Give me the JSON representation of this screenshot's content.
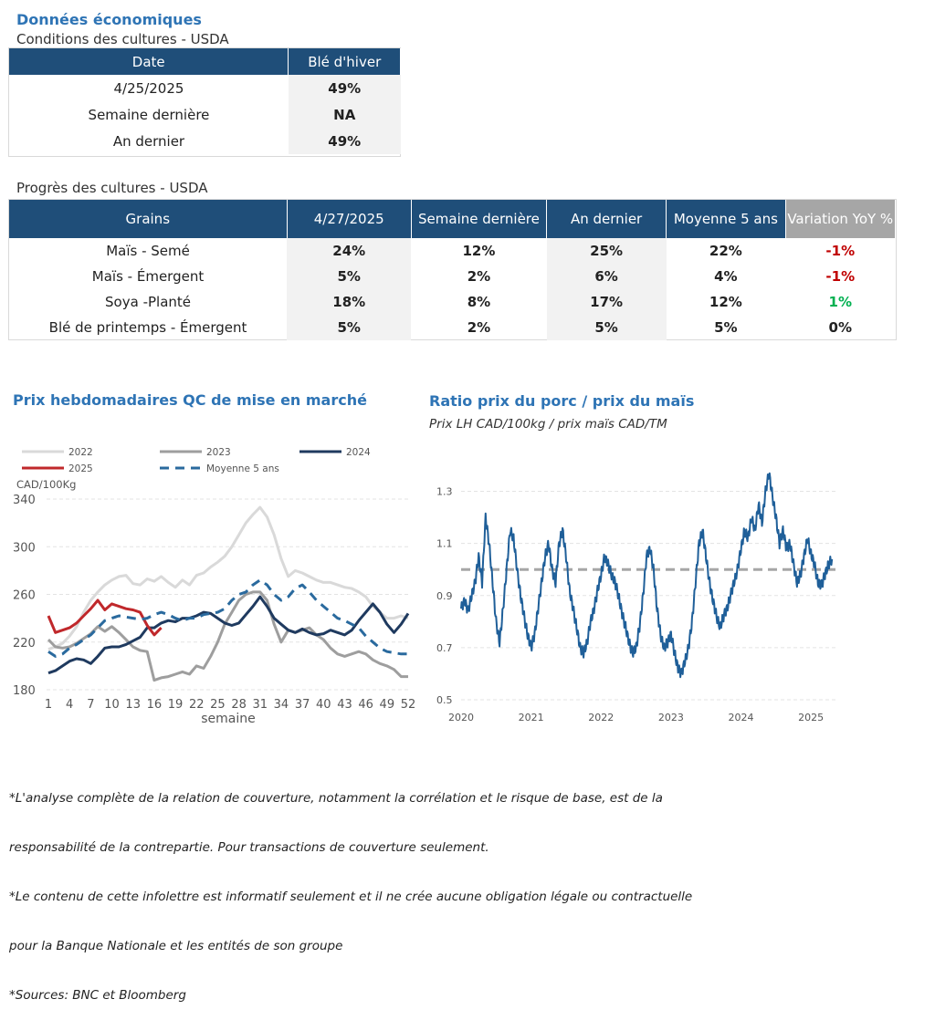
{
  "section1": {
    "heading": "Données économiques",
    "subtitle": "Conditions des cultures - USDA",
    "headers": [
      "Date",
      "Blé d'hiver"
    ],
    "rows": [
      {
        "label": "4/25/2025",
        "value": "49%"
      },
      {
        "label": "Semaine dernière",
        "value": "NA"
      },
      {
        "label": "An dernier",
        "value": "49%"
      }
    ]
  },
  "section2": {
    "subtitle": "Progrès des cultures - USDA",
    "headers": [
      "Grains",
      "4/27/2025",
      "Semaine dernière",
      "An dernier",
      "Moyenne 5 ans",
      "Variation YoY %"
    ],
    "rows": [
      {
        "label": "Maïs - Semé",
        "c1": "24%",
        "c2": "12%",
        "c3": "25%",
        "c4": "22%",
        "yoy": "-1%"
      },
      {
        "label": "Maïs - Émergent",
        "c1": "5%",
        "c2": "2%",
        "c3": "6%",
        "c4": "4%",
        "yoy": "-1%"
      },
      {
        "label": "Soya -Planté",
        "c1": "18%",
        "c2": "8%",
        "c3": "17%",
        "c4": "12%",
        "yoy": "1%"
      },
      {
        "label": "Blé de printemps - Émergent",
        "c1": "5%",
        "c2": "2%",
        "c3": "5%",
        "c4": "5%",
        "yoy": "0%"
      }
    ],
    "colors": {
      "negative": "#C00000",
      "positive": "#00B050"
    }
  },
  "chart_data": [
    {
      "type": "line",
      "title": "Prix hebdomadaires QC de mise en marché",
      "ylabel": "CAD/100Kg",
      "xlabel": "semaine",
      "ylim": [
        180,
        340
      ],
      "yticks": [
        180,
        220,
        260,
        300,
        340
      ],
      "xticks": [
        1,
        4,
        7,
        10,
        13,
        16,
        19,
        22,
        25,
        28,
        31,
        34,
        37,
        40,
        43,
        46,
        49,
        52
      ],
      "legend_position": "top",
      "series": [
        {
          "name": "2022",
          "color": "#D9D9D9",
          "dashed": false,
          "x": [
            1,
            2,
            3,
            4,
            5,
            6,
            7,
            8,
            9,
            10,
            11,
            12,
            13,
            14,
            15,
            16,
            17,
            18,
            19,
            20,
            21,
            22,
            23,
            24,
            25,
            26,
            27,
            28,
            29,
            30,
            31,
            32,
            33,
            34,
            35,
            36,
            37,
            38,
            39,
            40,
            41,
            42,
            43,
            44,
            45,
            46,
            47,
            48,
            49,
            50,
            51,
            52
          ],
          "values": [
            214,
            216,
            219,
            225,
            233,
            245,
            255,
            262,
            268,
            272,
            275,
            276,
            269,
            268,
            273,
            271,
            275,
            270,
            266,
            272,
            268,
            276,
            278,
            283,
            287,
            292,
            300,
            310,
            320,
            327,
            333,
            325,
            310,
            290,
            275,
            280,
            278,
            275,
            272,
            270,
            270,
            268,
            266,
            265,
            262,
            258,
            250,
            245,
            240,
            240,
            242,
            240
          ]
        },
        {
          "name": "2023",
          "color": "#9E9E9E",
          "dashed": false,
          "x": [
            1,
            2,
            3,
            4,
            5,
            6,
            7,
            8,
            9,
            10,
            11,
            12,
            13,
            14,
            15,
            16,
            17,
            18,
            19,
            20,
            21,
            22,
            23,
            24,
            25,
            26,
            27,
            28,
            29,
            30,
            31,
            32,
            33,
            34,
            35,
            36,
            37,
            38,
            39,
            40,
            41,
            42,
            43,
            44,
            45,
            46,
            47,
            48,
            49,
            50,
            51,
            52
          ],
          "values": [
            222,
            216,
            215,
            216,
            219,
            223,
            227,
            233,
            229,
            233,
            228,
            222,
            216,
            213,
            212,
            188,
            190,
            191,
            193,
            195,
            193,
            200,
            198,
            208,
            220,
            235,
            245,
            255,
            260,
            262,
            262,
            255,
            235,
            220,
            230,
            228,
            230,
            232,
            226,
            222,
            215,
            210,
            208,
            210,
            212,
            210,
            205,
            202,
            200,
            197,
            191,
            191
          ]
        },
        {
          "name": "2024",
          "color": "#1F3A5F",
          "dashed": false,
          "x": [
            1,
            2,
            3,
            4,
            5,
            6,
            7,
            8,
            9,
            10,
            11,
            12,
            13,
            14,
            15,
            16,
            17,
            18,
            19,
            20,
            21,
            22,
            23,
            24,
            25,
            26,
            27,
            28,
            29,
            30,
            31,
            32,
            33,
            34,
            35,
            36,
            37,
            38,
            39,
            40,
            41,
            42,
            43,
            44,
            45,
            46,
            47,
            48,
            49,
            50,
            51,
            52
          ],
          "values": [
            194,
            196,
            200,
            204,
            206,
            205,
            202,
            208,
            215,
            216,
            216,
            218,
            221,
            224,
            232,
            232,
            236,
            238,
            237,
            240,
            240,
            242,
            245,
            244,
            240,
            236,
            234,
            236,
            243,
            250,
            258,
            250,
            240,
            235,
            230,
            228,
            231,
            228,
            226,
            227,
            230,
            228,
            226,
            230,
            238,
            245,
            252,
            245,
            235,
            228,
            235,
            244
          ]
        },
        {
          "name": "2025",
          "color": "#C0282B",
          "dashed": false,
          "x": [
            1,
            2,
            3,
            4,
            5,
            6,
            7,
            8,
            9,
            10,
            11,
            12,
            13,
            14,
            15,
            16,
            17
          ],
          "values": [
            242,
            228,
            230,
            232,
            236,
            242,
            248,
            255,
            247,
            252,
            250,
            248,
            247,
            245,
            234,
            226,
            232
          ]
        },
        {
          "name": "Moyenne 5 ans",
          "color": "#2A6A9E",
          "dashed": true,
          "x": [
            1,
            2,
            3,
            4,
            5,
            6,
            7,
            8,
            9,
            10,
            11,
            12,
            13,
            14,
            15,
            16,
            17,
            18,
            19,
            20,
            21,
            22,
            23,
            24,
            25,
            26,
            27,
            28,
            29,
            30,
            31,
            32,
            33,
            34,
            35,
            36,
            37,
            38,
            39,
            40,
            41,
            42,
            43,
            44,
            45,
            46,
            47,
            48,
            49,
            50,
            51,
            52
          ],
          "values": [
            212,
            208,
            210,
            215,
            218,
            222,
            226,
            232,
            238,
            240,
            242,
            241,
            240,
            239,
            240,
            243,
            245,
            243,
            240,
            238,
            240,
            240,
            243,
            244,
            245,
            248,
            255,
            260,
            262,
            268,
            272,
            268,
            260,
            255,
            258,
            265,
            268,
            262,
            255,
            250,
            245,
            240,
            238,
            235,
            232,
            225,
            220,
            215,
            212,
            211,
            210,
            210
          ]
        }
      ]
    },
    {
      "type": "line",
      "title": "Ratio prix du porc / prix du maïs",
      "subtitle": "Prix LH CAD/100kg / prix maïs CAD/TM",
      "ylim": [
        0.5,
        1.4
      ],
      "yticks": [
        0.5,
        0.7,
        0.9,
        1.1,
        1.3
      ],
      "xticks": [
        "2020",
        "2021",
        "2022",
        "2023",
        "2024",
        "2025"
      ],
      "reference_line": 1.0,
      "series": [
        {
          "name": "Ratio",
          "color": "#1F5F99",
          "x": [
            2020.0,
            2020.05,
            2020.1,
            2020.15,
            2020.2,
            2020.25,
            2020.3,
            2020.35,
            2020.4,
            2020.45,
            2020.5,
            2020.55,
            2020.6,
            2020.65,
            2020.7,
            2020.75,
            2020.8,
            2020.85,
            2020.9,
            2020.95,
            2021.0,
            2021.05,
            2021.1,
            2021.15,
            2021.2,
            2021.25,
            2021.3,
            2021.35,
            2021.4,
            2021.45,
            2021.5,
            2021.55,
            2021.6,
            2021.65,
            2021.7,
            2021.75,
            2021.8,
            2021.85,
            2021.9,
            2021.95,
            2022.0,
            2022.05,
            2022.1,
            2022.15,
            2022.2,
            2022.25,
            2022.3,
            2022.35,
            2022.4,
            2022.45,
            2022.5,
            2022.55,
            2022.6,
            2022.65,
            2022.7,
            2022.75,
            2022.8,
            2022.85,
            2022.9,
            2022.95,
            2023.0,
            2023.05,
            2023.1,
            2023.15,
            2023.2,
            2023.25,
            2023.3,
            2023.35,
            2023.4,
            2023.45,
            2023.5,
            2023.55,
            2023.6,
            2023.65,
            2023.7,
            2023.75,
            2023.8,
            2023.85,
            2023.9,
            2023.95,
            2024.0,
            2024.05,
            2024.1,
            2024.15,
            2024.2,
            2024.25,
            2024.3,
            2024.35,
            2024.4,
            2024.45,
            2024.5,
            2024.55,
            2024.6,
            2024.65,
            2024.7,
            2024.75,
            2024.8,
            2024.85,
            2024.9,
            2024.95,
            2025.0,
            2025.05,
            2025.1,
            2025.15,
            2025.2,
            2025.25,
            2025.3
          ],
          "values": [
            0.85,
            0.88,
            0.84,
            0.9,
            0.95,
            1.05,
            0.95,
            1.2,
            1.1,
            0.95,
            0.8,
            0.72,
            0.85,
            1.0,
            1.15,
            1.12,
            1.0,
            0.9,
            0.82,
            0.75,
            0.7,
            0.75,
            0.85,
            0.95,
            1.05,
            1.1,
            1.0,
            0.95,
            1.1,
            1.15,
            1.05,
            0.92,
            0.85,
            0.78,
            0.7,
            0.68,
            0.72,
            0.8,
            0.85,
            0.92,
            0.98,
            1.05,
            1.02,
            0.98,
            0.95,
            0.9,
            0.83,
            0.78,
            0.72,
            0.68,
            0.7,
            0.78,
            0.9,
            1.05,
            1.08,
            1.0,
            0.85,
            0.75,
            0.7,
            0.72,
            0.75,
            0.68,
            0.62,
            0.6,
            0.65,
            0.7,
            0.8,
            0.95,
            1.1,
            1.15,
            1.05,
            0.95,
            0.88,
            0.82,
            0.78,
            0.82,
            0.85,
            0.9,
            0.95,
            1.0,
            1.08,
            1.15,
            1.12,
            1.2,
            1.15,
            1.25,
            1.18,
            1.3,
            1.37,
            1.28,
            1.2,
            1.1,
            1.15,
            1.08,
            1.1,
            1.02,
            0.95,
            0.98,
            1.05,
            1.12,
            1.06,
            1.02,
            0.95,
            0.94,
            0.98,
            1.02,
            1.04
          ]
        }
      ]
    }
  ],
  "footnotes": [
    "*L'analyse complète de la relation de couverture, notamment la corrélation et le risque de base, est de la",
    "responsabilité de la contrepartie. Pour transactions de couverture seulement.",
    "*Le contenu de cette infolettre est informatif seulement et il ne crée aucune obligation légale ou contractuelle",
    "pour la Banque Nationale et les entités de son groupe",
    "*Sources: BNC et Bloomberg"
  ]
}
